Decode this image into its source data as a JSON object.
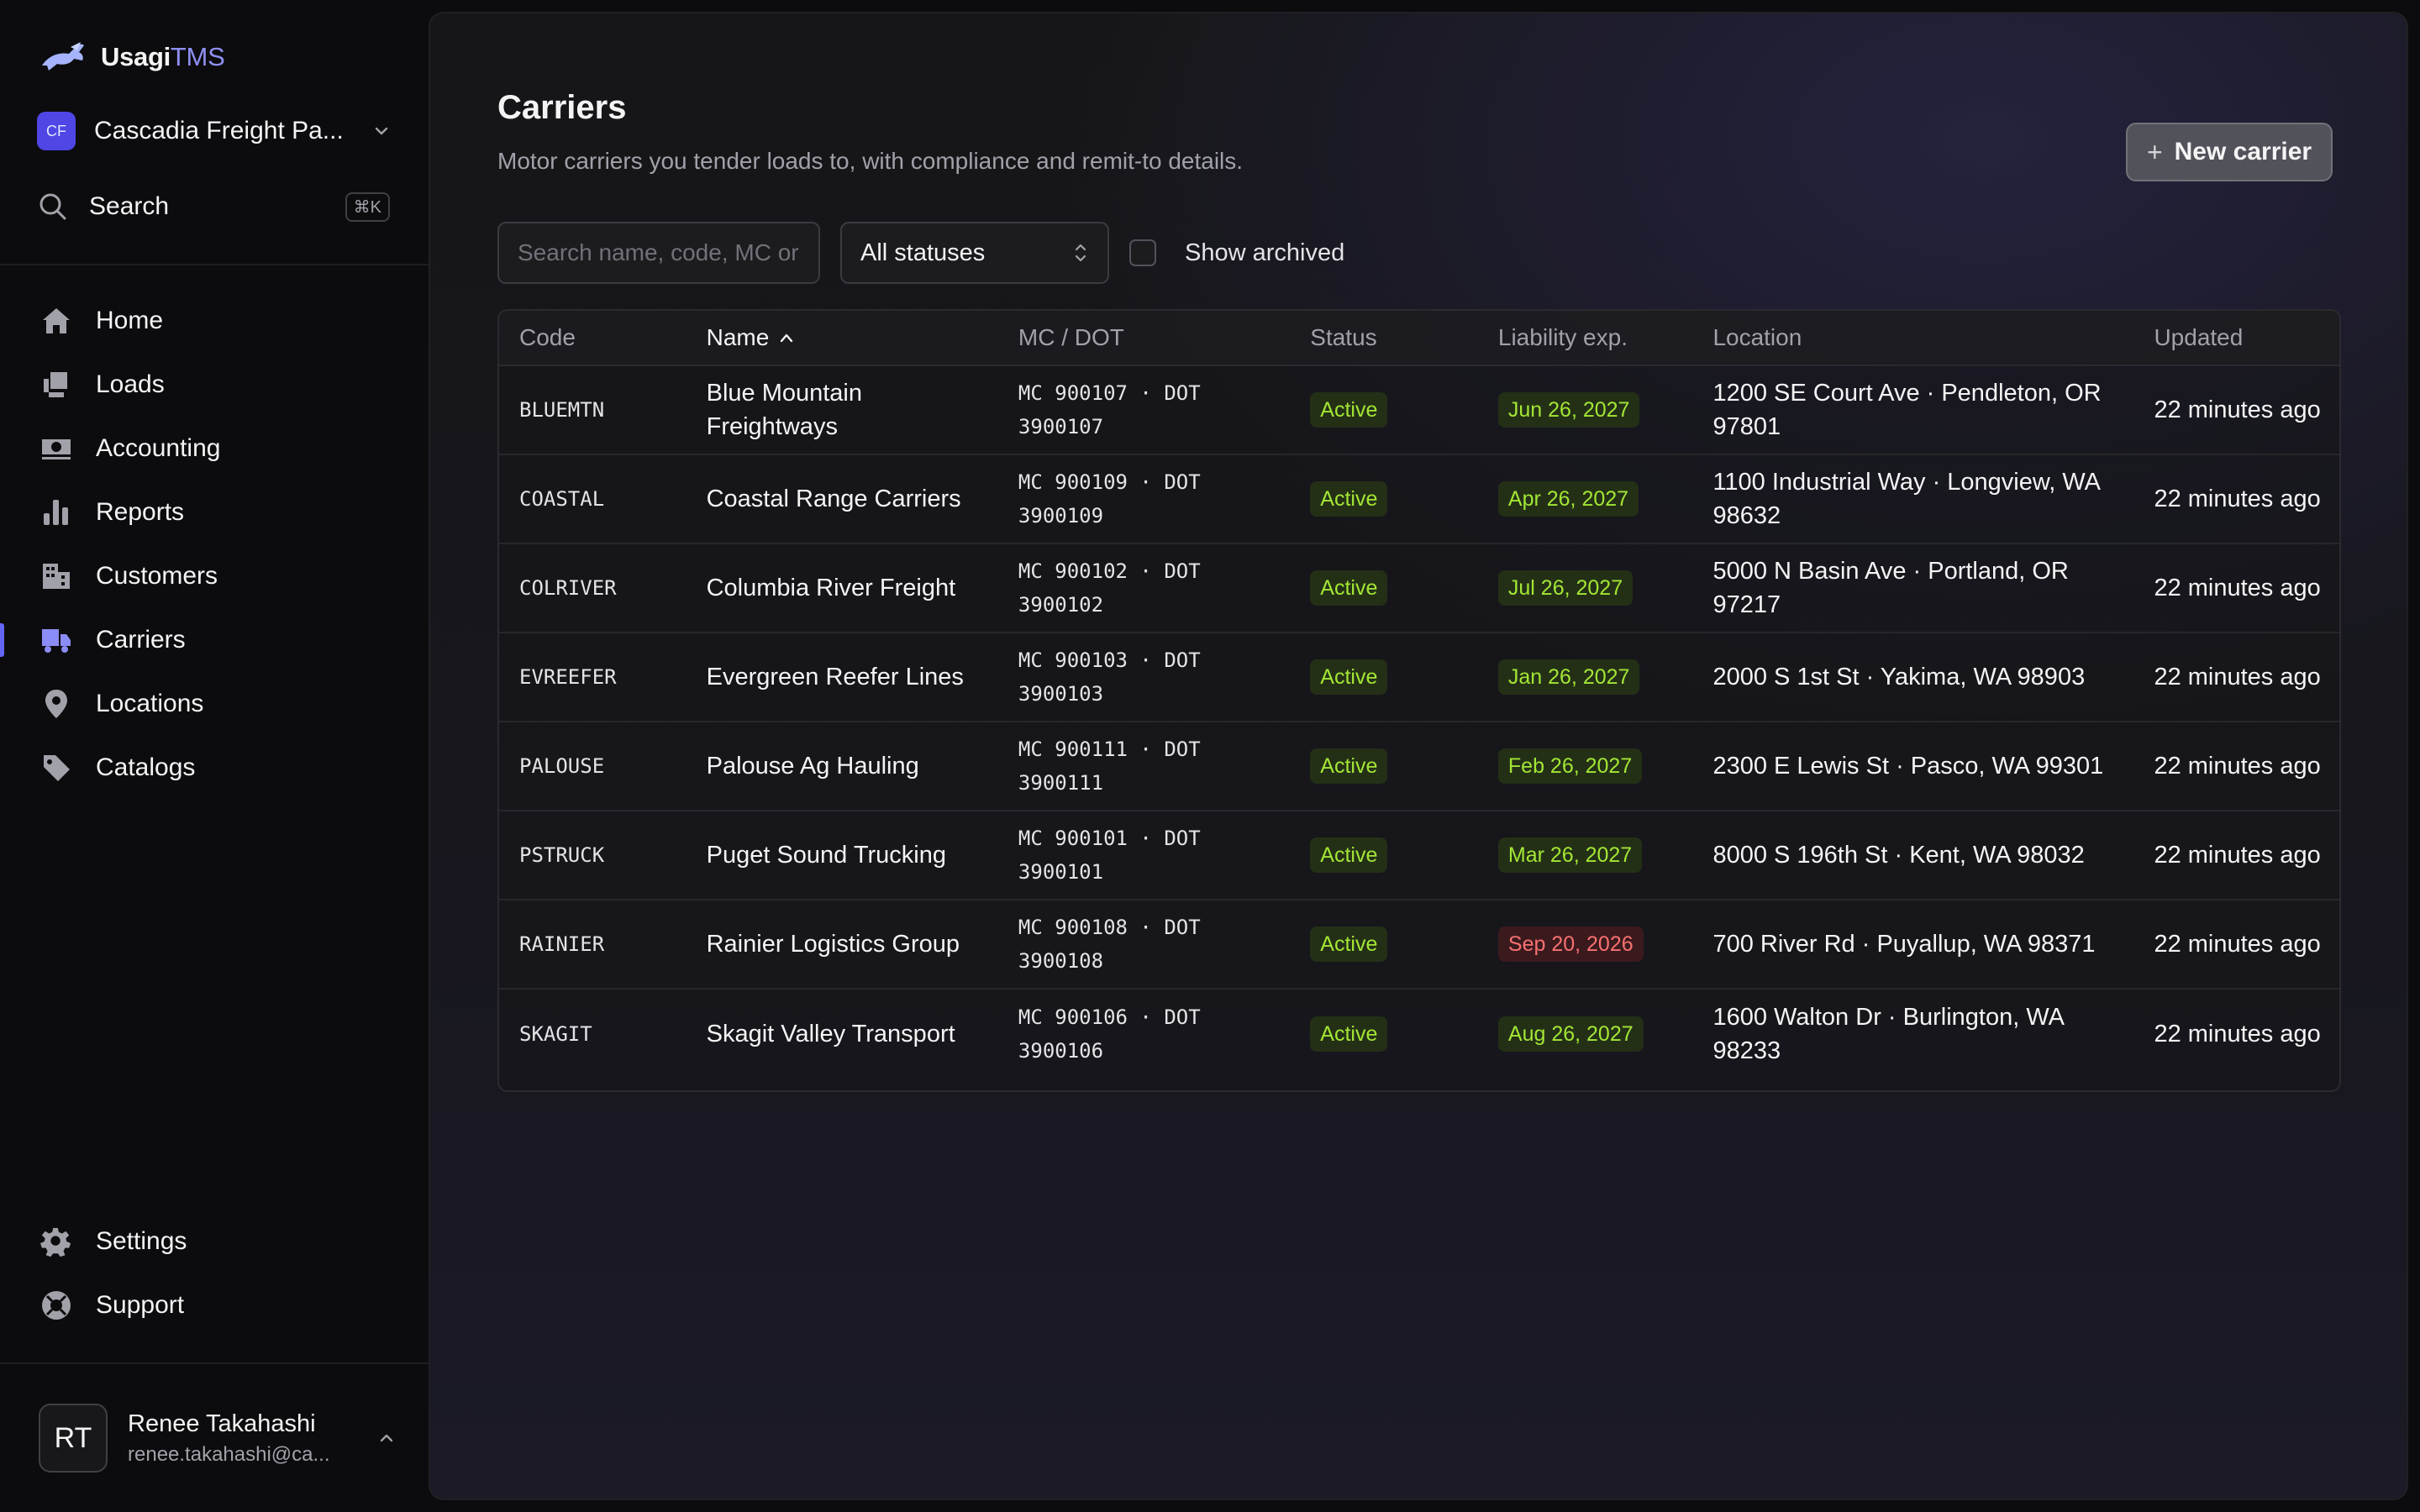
{
  "brand": {
    "name_main": "Usagi",
    "name_accent": "TMS"
  },
  "org": {
    "initials": "CF",
    "name": "Cascadia Freight Pa..."
  },
  "sidebar_search": {
    "label": "Search",
    "shortcut": "⌘K"
  },
  "nav": {
    "items": [
      {
        "label": "Home",
        "icon": "home-icon"
      },
      {
        "label": "Loads",
        "icon": "loads-icon"
      },
      {
        "label": "Accounting",
        "icon": "accounting-icon"
      },
      {
        "label": "Reports",
        "icon": "reports-icon"
      },
      {
        "label": "Customers",
        "icon": "customers-icon"
      },
      {
        "label": "Carriers",
        "icon": "carriers-icon",
        "active": true
      },
      {
        "label": "Locations",
        "icon": "locations-icon"
      },
      {
        "label": "Catalogs",
        "icon": "catalogs-icon"
      }
    ],
    "bottom": [
      {
        "label": "Settings",
        "icon": "gear-icon"
      },
      {
        "label": "Support",
        "icon": "support-icon"
      }
    ]
  },
  "user": {
    "initials": "RT",
    "name": "Renee Takahashi",
    "email": "renee.takahashi@ca..."
  },
  "page": {
    "title": "Carriers",
    "subtitle": "Motor carriers you tender loads to, with compliance and remit-to details.",
    "new_button": "New carrier"
  },
  "filters": {
    "search_placeholder": "Search name, code, MC or DOT...",
    "status_value": "All statuses",
    "show_archived_label": "Show archived"
  },
  "table": {
    "columns": [
      "Code",
      "Name",
      "MC / DOT",
      "Status",
      "Liability exp.",
      "Location",
      "Updated"
    ],
    "rows": [
      {
        "code": "BLUEMTN",
        "name": "Blue Mountain Freightways",
        "mc": "MC 900107 · DOT",
        "dot": "3900107",
        "status": "Active",
        "liability": "Jun 26, 2027",
        "liability_state": "ok",
        "location": "1200 SE Court Ave · Pendleton, OR 97801",
        "updated": "22 minutes ago"
      },
      {
        "code": "COASTAL",
        "name": "Coastal Range Carriers",
        "mc": "MC 900109 · DOT",
        "dot": "3900109",
        "status": "Active",
        "liability": "Apr 26, 2027",
        "liability_state": "ok",
        "location": "1100 Industrial Way · Longview, WA 98632",
        "updated": "22 minutes ago"
      },
      {
        "code": "COLRIVER",
        "name": "Columbia River Freight",
        "mc": "MC 900102 · DOT",
        "dot": "3900102",
        "status": "Active",
        "liability": "Jul 26, 2027",
        "liability_state": "ok",
        "location": "5000 N Basin Ave · Portland, OR 97217",
        "updated": "22 minutes ago"
      },
      {
        "code": "EVREEFER",
        "name": "Evergreen Reefer Lines",
        "mc": "MC 900103 · DOT",
        "dot": "3900103",
        "status": "Active",
        "liability": "Jan 26, 2027",
        "liability_state": "ok",
        "location": "2000 S 1st St · Yakima, WA 98903",
        "updated": "22 minutes ago"
      },
      {
        "code": "PALOUSE",
        "name": "Palouse Ag Hauling",
        "mc": "MC 900111 · DOT",
        "dot": "3900111",
        "status": "Active",
        "liability": "Feb 26, 2027",
        "liability_state": "ok",
        "location": "2300 E Lewis St · Pasco, WA 99301",
        "updated": "22 minutes ago"
      },
      {
        "code": "PSTRUCK",
        "name": "Puget Sound Trucking",
        "mc": "MC 900101 · DOT",
        "dot": "3900101",
        "status": "Active",
        "liability": "Mar 26, 2027",
        "liability_state": "ok",
        "location": "8000 S 196th St · Kent, WA 98032",
        "updated": "22 minutes ago"
      },
      {
        "code": "RAINIER",
        "name": "Rainier Logistics Group",
        "mc": "MC 900108 · DOT",
        "dot": "3900108",
        "status": "Active",
        "liability": "Sep 20, 2026",
        "liability_state": "warn",
        "location": "700 River Rd · Puyallup, WA 98371",
        "updated": "22 minutes ago"
      },
      {
        "code": "SKAGIT",
        "name": "Skagit Valley Transport",
        "mc": "MC 900106 · DOT",
        "dot": "3900106",
        "status": "Active",
        "liability": "Aug 26, 2027",
        "liability_state": "ok",
        "location": "1600 Walton Dr · Burlington, WA 98233",
        "updated": "22 minutes ago"
      }
    ]
  },
  "colors": {
    "accent": "#6366f1",
    "active_green": "#a3e635",
    "warn_red": "#f87171"
  }
}
